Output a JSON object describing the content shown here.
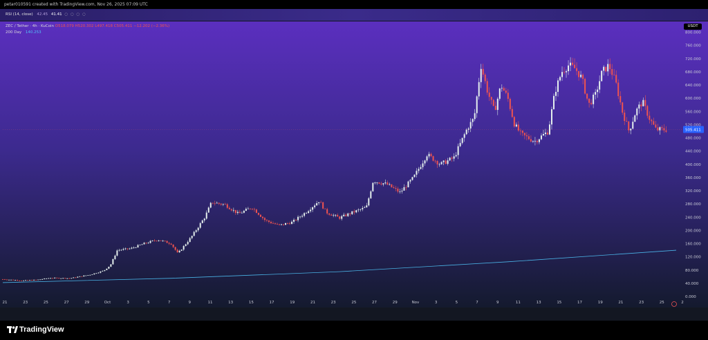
{
  "header": {
    "caption": "petar010591 created with TradingView.com, Nov 26, 2025 07:09 UTC"
  },
  "rsi_pane": {
    "label": "RSI (14, close)",
    "prev_value": "42.45",
    "value": "41.41",
    "icons": [
      "circle-icon",
      "circle-icon",
      "circle-icon",
      "circle-icon"
    ]
  },
  "price_legend": {
    "symbol": "ZEC / Tether · 4h · KuCoin",
    "ohlc": "O518.079 H520.302 L497.418 C505.411 −12.202 (−2.36%)",
    "ma_label": "200 Day",
    "ma_value": "140.253"
  },
  "currency_badge": "USDT",
  "last_price_label": "505.411",
  "brand": {
    "name": "TradingView"
  },
  "colors": {
    "up": "#26a69a",
    "down": "#ef5350",
    "ma": "#4fc3f7",
    "bg_top": "#5b2fbf",
    "bg_bottom": "#141a2e"
  },
  "chart_data": {
    "type": "candlestick",
    "title": "ZEC / Tether · 4h · KuCoin",
    "y_ticks": [
      "800.000",
      "760.000",
      "720.000",
      "680.000",
      "640.000",
      "600.000",
      "560.000",
      "520.000",
      "480.000",
      "440.000",
      "400.000",
      "360.000",
      "320.000",
      "280.000",
      "240.000",
      "200.000",
      "160.000",
      "120.000",
      "80.000",
      "40.000",
      "0.000"
    ],
    "x_ticks": [
      "21",
      "23",
      "25",
      "27",
      "29",
      "Oct",
      "3",
      "5",
      "7",
      "9",
      "11",
      "13",
      "15",
      "17",
      "19",
      "21",
      "23",
      "25",
      "27",
      "29",
      "Nov",
      "3",
      "5",
      "7",
      "9",
      "11",
      "13",
      "15",
      "17",
      "19",
      "21",
      "23",
      "25",
      "2"
    ],
    "ylim": [
      0,
      820
    ],
    "ma_series": {
      "name": "200 Day",
      "points": [
        [
          0,
          42
        ],
        [
          0.25,
          55
        ],
        [
          0.5,
          75
        ],
        [
          0.75,
          105
        ],
        [
          1.0,
          140
        ]
      ]
    },
    "price_path": [
      [
        0.0,
        52
      ],
      [
        0.03,
        48
      ],
      [
        0.05,
        50
      ],
      [
        0.07,
        56
      ],
      [
        0.1,
        55
      ],
      [
        0.13,
        66
      ],
      [
        0.15,
        78
      ],
      [
        0.16,
        95
      ],
      [
        0.17,
        140
      ],
      [
        0.19,
        145
      ],
      [
        0.21,
        160
      ],
      [
        0.23,
        172
      ],
      [
        0.25,
        160
      ],
      [
        0.26,
        130
      ],
      [
        0.28,
        180
      ],
      [
        0.3,
        240
      ],
      [
        0.31,
        285
      ],
      [
        0.33,
        278
      ],
      [
        0.35,
        250
      ],
      [
        0.37,
        270
      ],
      [
        0.39,
        230
      ],
      [
        0.41,
        215
      ],
      [
        0.43,
        225
      ],
      [
        0.45,
        255
      ],
      [
        0.47,
        290
      ],
      [
        0.48,
        255
      ],
      [
        0.5,
        238
      ],
      [
        0.52,
        255
      ],
      [
        0.54,
        270
      ],
      [
        0.55,
        350
      ],
      [
        0.57,
        340
      ],
      [
        0.59,
        315
      ],
      [
        0.61,
        360
      ],
      [
        0.63,
        430
      ],
      [
        0.65,
        400
      ],
      [
        0.67,
        420
      ],
      [
        0.69,
        510
      ],
      [
        0.7,
        540
      ],
      [
        0.71,
        700
      ],
      [
        0.72,
        620
      ],
      [
        0.73,
        560
      ],
      [
        0.74,
        640
      ],
      [
        0.75,
        600
      ],
      [
        0.76,
        520
      ],
      [
        0.77,
        490
      ],
      [
        0.79,
        470
      ],
      [
        0.81,
        500
      ],
      [
        0.82,
        620
      ],
      [
        0.83,
        680
      ],
      [
        0.84,
        700
      ],
      [
        0.85,
        690
      ],
      [
        0.86,
        660
      ],
      [
        0.87,
        580
      ],
      [
        0.88,
        610
      ],
      [
        0.89,
        680
      ],
      [
        0.9,
        700
      ],
      [
        0.91,
        650
      ],
      [
        0.92,
        560
      ],
      [
        0.93,
        500
      ],
      [
        0.94,
        560
      ],
      [
        0.95,
        590
      ],
      [
        0.96,
        540
      ],
      [
        0.97,
        505
      ],
      [
        0.98,
        505
      ]
    ],
    "last_price": 505.411,
    "grid": false
  }
}
